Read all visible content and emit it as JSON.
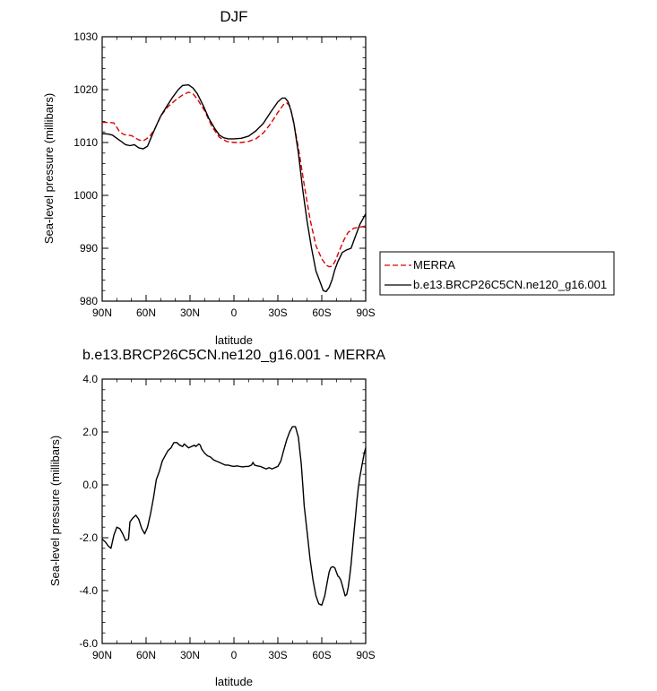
{
  "chart_data": [
    {
      "type": "line",
      "title": "DJF",
      "xlabel": "latitude",
      "ylabel": "Sea-level pressure (millibars)",
      "xlim": [
        -90,
        90
      ],
      "ylim": [
        980,
        1030
      ],
      "x_tick_values": [
        -90,
        -60,
        -30,
        0,
        30,
        60,
        90
      ],
      "x_tick_labels": [
        "90N",
        "60N",
        "30N",
        "0",
        "30S",
        "60S",
        "90S"
      ],
      "y_tick_values": [
        980,
        990,
        1000,
        1010,
        1020,
        1030
      ],
      "y_tick_labels": [
        "980",
        "990",
        "1000",
        "1010",
        "1020",
        "1030"
      ],
      "legend_position": "outside-right",
      "series": [
        {
          "name": "MERRA",
          "color": "#dd0000",
          "style": "dashed",
          "x": [
            -90,
            -85,
            -82,
            -78,
            -75,
            -70,
            -65,
            -62,
            -58,
            -54,
            -50,
            -45,
            -40,
            -35,
            -31,
            -28,
            -25,
            -20,
            -15,
            -10,
            -5,
            0,
            5,
            10,
            15,
            20,
            25,
            30,
            34,
            36,
            38,
            40,
            44,
            48,
            52,
            56,
            60,
            63,
            65,
            67,
            69,
            72,
            75,
            78,
            82,
            86,
            90
          ],
          "values": [
            1013.8,
            1013.8,
            1013.7,
            1012.0,
            1011.5,
            1011.3,
            1010.5,
            1010.3,
            1011.0,
            1012.6,
            1015.0,
            1016.8,
            1018.0,
            1019.0,
            1019.5,
            1019.2,
            1018.2,
            1016.0,
            1013.0,
            1011.0,
            1010.2,
            1010.0,
            1010.0,
            1010.2,
            1010.7,
            1011.8,
            1013.5,
            1015.7,
            1017.2,
            1017.5,
            1017.0,
            1015.0,
            1009.0,
            1002.0,
            995.5,
            990.5,
            988.0,
            986.8,
            986.5,
            986.6,
            987.5,
            989.5,
            991.5,
            993.0,
            993.8,
            994.0,
            994.2
          ]
        },
        {
          "name": "b.e13.BRCP26C5CN.ne120_g16.001",
          "color": "#000000",
          "style": "solid",
          "x": [
            -90,
            -86,
            -83,
            -80,
            -77,
            -74,
            -71,
            -68,
            -65,
            -62,
            -59,
            -56,
            -53,
            -50,
            -46,
            -42,
            -38,
            -35,
            -31,
            -28,
            -25,
            -21,
            -17,
            -13,
            -10,
            -7,
            -4,
            0,
            5,
            10,
            15,
            20,
            25,
            30,
            33,
            35,
            37,
            39,
            41,
            44,
            47,
            50,
            53,
            56,
            59,
            61,
            63,
            65,
            67,
            69,
            71,
            74,
            77,
            80,
            82,
            84,
            86,
            88,
            90
          ],
          "values": [
            1011.7,
            1011.6,
            1011.4,
            1010.8,
            1010.2,
            1009.6,
            1009.4,
            1009.6,
            1009.0,
            1008.8,
            1009.3,
            1011.3,
            1013.2,
            1015.0,
            1016.8,
            1018.5,
            1020.0,
            1020.8,
            1020.9,
            1020.3,
            1019.2,
            1017.0,
            1014.5,
            1012.6,
            1011.4,
            1010.9,
            1010.7,
            1010.7,
            1010.8,
            1011.2,
            1012.2,
            1013.6,
            1015.7,
            1017.7,
            1018.4,
            1018.4,
            1017.7,
            1016.0,
            1013.5,
            1008.0,
            1001.0,
            995.0,
            990.0,
            985.7,
            983.5,
            982.0,
            981.8,
            982.6,
            984.0,
            986.0,
            987.5,
            989.2,
            989.7,
            990.0,
            991.5,
            993.0,
            994.5,
            995.5,
            996.5
          ]
        }
      ]
    },
    {
      "type": "line",
      "title": "b.e13.BRCP26C5CN.ne120_g16.001 - MERRA",
      "xlabel": "latitude",
      "ylabel": "Sea-level pressure (millibars)",
      "xlim": [
        -90,
        90
      ],
      "ylim": [
        -6,
        4
      ],
      "x_tick_values": [
        -90,
        -60,
        -30,
        0,
        30,
        60,
        90
      ],
      "x_tick_labels": [
        "90N",
        "60N",
        "30N",
        "0",
        "30S",
        "60S",
        "90S"
      ],
      "y_tick_values": [
        -6,
        -4,
        -2,
        0,
        2,
        4
      ],
      "y_tick_labels": [
        "-6.0",
        "-4.0",
        "-2.0",
        "0.0",
        "2.0",
        "4.0"
      ],
      "series": [
        {
          "color": "#000000",
          "style": "solid",
          "x": [
            -90,
            -88,
            -86,
            -84,
            -82,
            -80,
            -78,
            -76,
            -74,
            -72,
            -71,
            -69,
            -67,
            -65,
            -63,
            -61,
            -59,
            -57,
            -55,
            -53,
            -51,
            -49,
            -47,
            -45,
            -43,
            -41,
            -39,
            -37,
            -35,
            -34,
            -33,
            -31,
            -29,
            -27,
            -26,
            -25,
            -24,
            -23,
            -22,
            -20,
            -18,
            -16,
            -14,
            -12,
            -10,
            -8,
            -6,
            -4,
            -2,
            0,
            2,
            4,
            6,
            8,
            10,
            12,
            13,
            14,
            16,
            18,
            20,
            22,
            24,
            26,
            28,
            30,
            32,
            34,
            36,
            38,
            40,
            42,
            44,
            46,
            47,
            48,
            50,
            52,
            54,
            56,
            58,
            60,
            62,
            64,
            65,
            66,
            67,
            68,
            69,
            70,
            71,
            72,
            73,
            74,
            75,
            76,
            77,
            78,
            79,
            80,
            81,
            82,
            83,
            84,
            85,
            86,
            87,
            88,
            89,
            90
          ],
          "values": [
            -2.05,
            -2.15,
            -2.3,
            -2.4,
            -1.9,
            -1.6,
            -1.65,
            -1.85,
            -2.1,
            -2.05,
            -1.4,
            -1.25,
            -1.15,
            -1.3,
            -1.65,
            -1.85,
            -1.6,
            -1.1,
            -0.5,
            0.2,
            0.5,
            0.9,
            1.1,
            1.3,
            1.4,
            1.6,
            1.6,
            1.5,
            1.45,
            1.55,
            1.5,
            1.4,
            1.45,
            1.5,
            1.45,
            1.5,
            1.55,
            1.5,
            1.35,
            1.2,
            1.1,
            1.05,
            0.95,
            0.9,
            0.85,
            0.8,
            0.75,
            0.75,
            0.72,
            0.7,
            0.72,
            0.7,
            0.68,
            0.7,
            0.7,
            0.75,
            0.85,
            0.75,
            0.72,
            0.7,
            0.65,
            0.6,
            0.65,
            0.6,
            0.65,
            0.7,
            0.9,
            1.3,
            1.7,
            2.0,
            2.2,
            2.2,
            1.8,
            0.8,
            0.0,
            -0.8,
            -1.8,
            -2.8,
            -3.6,
            -4.2,
            -4.5,
            -4.55,
            -4.2,
            -3.6,
            -3.3,
            -3.15,
            -3.1,
            -3.1,
            -3.15,
            -3.3,
            -3.45,
            -3.5,
            -3.6,
            -3.8,
            -4.0,
            -4.2,
            -4.15,
            -3.9,
            -3.5,
            -3.0,
            -2.4,
            -1.8,
            -1.2,
            -0.6,
            -0.1,
            0.3,
            0.6,
            0.9,
            1.2,
            1.4
          ]
        }
      ]
    }
  ]
}
